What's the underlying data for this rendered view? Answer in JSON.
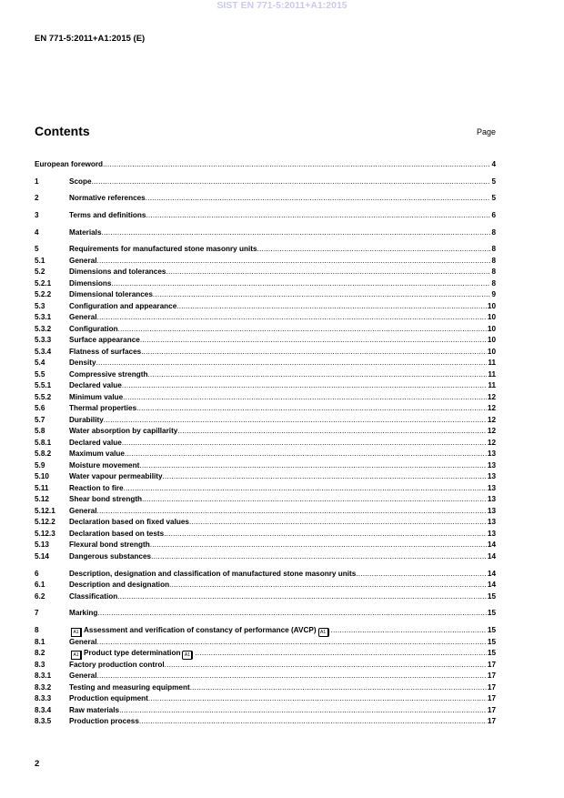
{
  "watermark": "SIST EN 771-5:2011+A1:2015",
  "header": {
    "doc_id": "EN 771-5:2011+A1:2015 (E)"
  },
  "contents": {
    "title": "Contents",
    "page_label": "Page",
    "entries": [
      {
        "num": "",
        "title": "European foreword",
        "page": "4"
      },
      {
        "num": "1",
        "title": "Scope",
        "page": "5",
        "gap": true
      },
      {
        "num": "2",
        "title": "Normative references",
        "page": "5",
        "gap": true
      },
      {
        "num": "3",
        "title": "Terms and definitions",
        "page": "6",
        "gap": true
      },
      {
        "num": "4",
        "title": "Materials",
        "page": "8",
        "gap": true
      },
      {
        "num": "5",
        "title": "Requirements for manufactured stone masonry units",
        "page": "8",
        "gap": true
      },
      {
        "num": "5.1",
        "title": "General",
        "page": "8"
      },
      {
        "num": "5.2",
        "title": "Dimensions and tolerances",
        "page": "8"
      },
      {
        "num": "5.2.1",
        "title": "Dimensions",
        "page": "8"
      },
      {
        "num": "5.2.2",
        "title": "Dimensional tolerances",
        "page": "9"
      },
      {
        "num": "5.3",
        "title": "Configuration and appearance",
        "page": "10"
      },
      {
        "num": "5.3.1",
        "title": "General",
        "page": "10"
      },
      {
        "num": "5.3.2",
        "title": "Configuration",
        "page": "10"
      },
      {
        "num": "5.3.3",
        "title": "Surface appearance",
        "page": "10"
      },
      {
        "num": "5.3.4",
        "title": "Flatness of surfaces",
        "page": "10"
      },
      {
        "num": "5.4",
        "title": "Density",
        "page": "11"
      },
      {
        "num": "5.5",
        "title": "Compressive strength",
        "page": "11"
      },
      {
        "num": "5.5.1",
        "title": "Declared value",
        "page": "11"
      },
      {
        "num": "5.5.2",
        "title": "Minimum value",
        "page": "12"
      },
      {
        "num": "5.6",
        "title": "Thermal properties",
        "page": "12"
      },
      {
        "num": "5.7",
        "title": "Durability",
        "page": "12"
      },
      {
        "num": "5.8",
        "title": "Water absorption by capillarity",
        "page": "12"
      },
      {
        "num": "5.8.1",
        "title": "Declared value",
        "page": "12"
      },
      {
        "num": "5.8.2",
        "title": "Maximum value",
        "page": "13"
      },
      {
        "num": "5.9",
        "title": "Moisture movement",
        "page": "13"
      },
      {
        "num": "5.10",
        "title": "Water vapour permeability",
        "page": "13"
      },
      {
        "num": "5.11",
        "title": "Reaction to fire",
        "page": "13"
      },
      {
        "num": "5.12",
        "title": "Shear bond strength",
        "page": "13"
      },
      {
        "num": "5.12.1",
        "title": "General",
        "page": "13"
      },
      {
        "num": "5.12.2",
        "title": "Declaration based on fixed values",
        "page": "13"
      },
      {
        "num": "5.12.3",
        "title": "Declaration based on tests",
        "page": "13"
      },
      {
        "num": "5.13",
        "title": "Flexural bond strength",
        "page": "14"
      },
      {
        "num": "5.14",
        "title": "Dangerous substances",
        "page": "14"
      },
      {
        "num": "6",
        "title": "Description, designation and classification of manufactured stone masonry units",
        "page": "14",
        "gap": true
      },
      {
        "num": "6.1",
        "title": "Description and designation",
        "page": "14"
      },
      {
        "num": "6.2",
        "title": "Classification",
        "page": "15"
      },
      {
        "num": "7",
        "title": "Marking",
        "page": "15",
        "gap": true
      },
      {
        "num": "8",
        "title": "Assessment and verification of constancy of performance (AVCP)",
        "page": "15",
        "gap": true,
        "amendment_marks": "A1"
      },
      {
        "num": "8.1",
        "title": "General",
        "page": "15"
      },
      {
        "num": "8.2",
        "title": "Product type determination",
        "page": "15",
        "amendment_marks": "A1"
      },
      {
        "num": "8.3",
        "title": "Factory production control",
        "page": "17"
      },
      {
        "num": "8.3.1",
        "title": "General",
        "page": "17"
      },
      {
        "num": "8.3.2",
        "title": "Testing and measuring equipment",
        "page": "17"
      },
      {
        "num": "8.3.3",
        "title": "Production equipment",
        "page": "17"
      },
      {
        "num": "8.3.4",
        "title": "Raw materials",
        "page": "17"
      },
      {
        "num": "8.3.5",
        "title": "Production process",
        "page": "17"
      }
    ]
  },
  "footer": {
    "page_number": "2"
  }
}
